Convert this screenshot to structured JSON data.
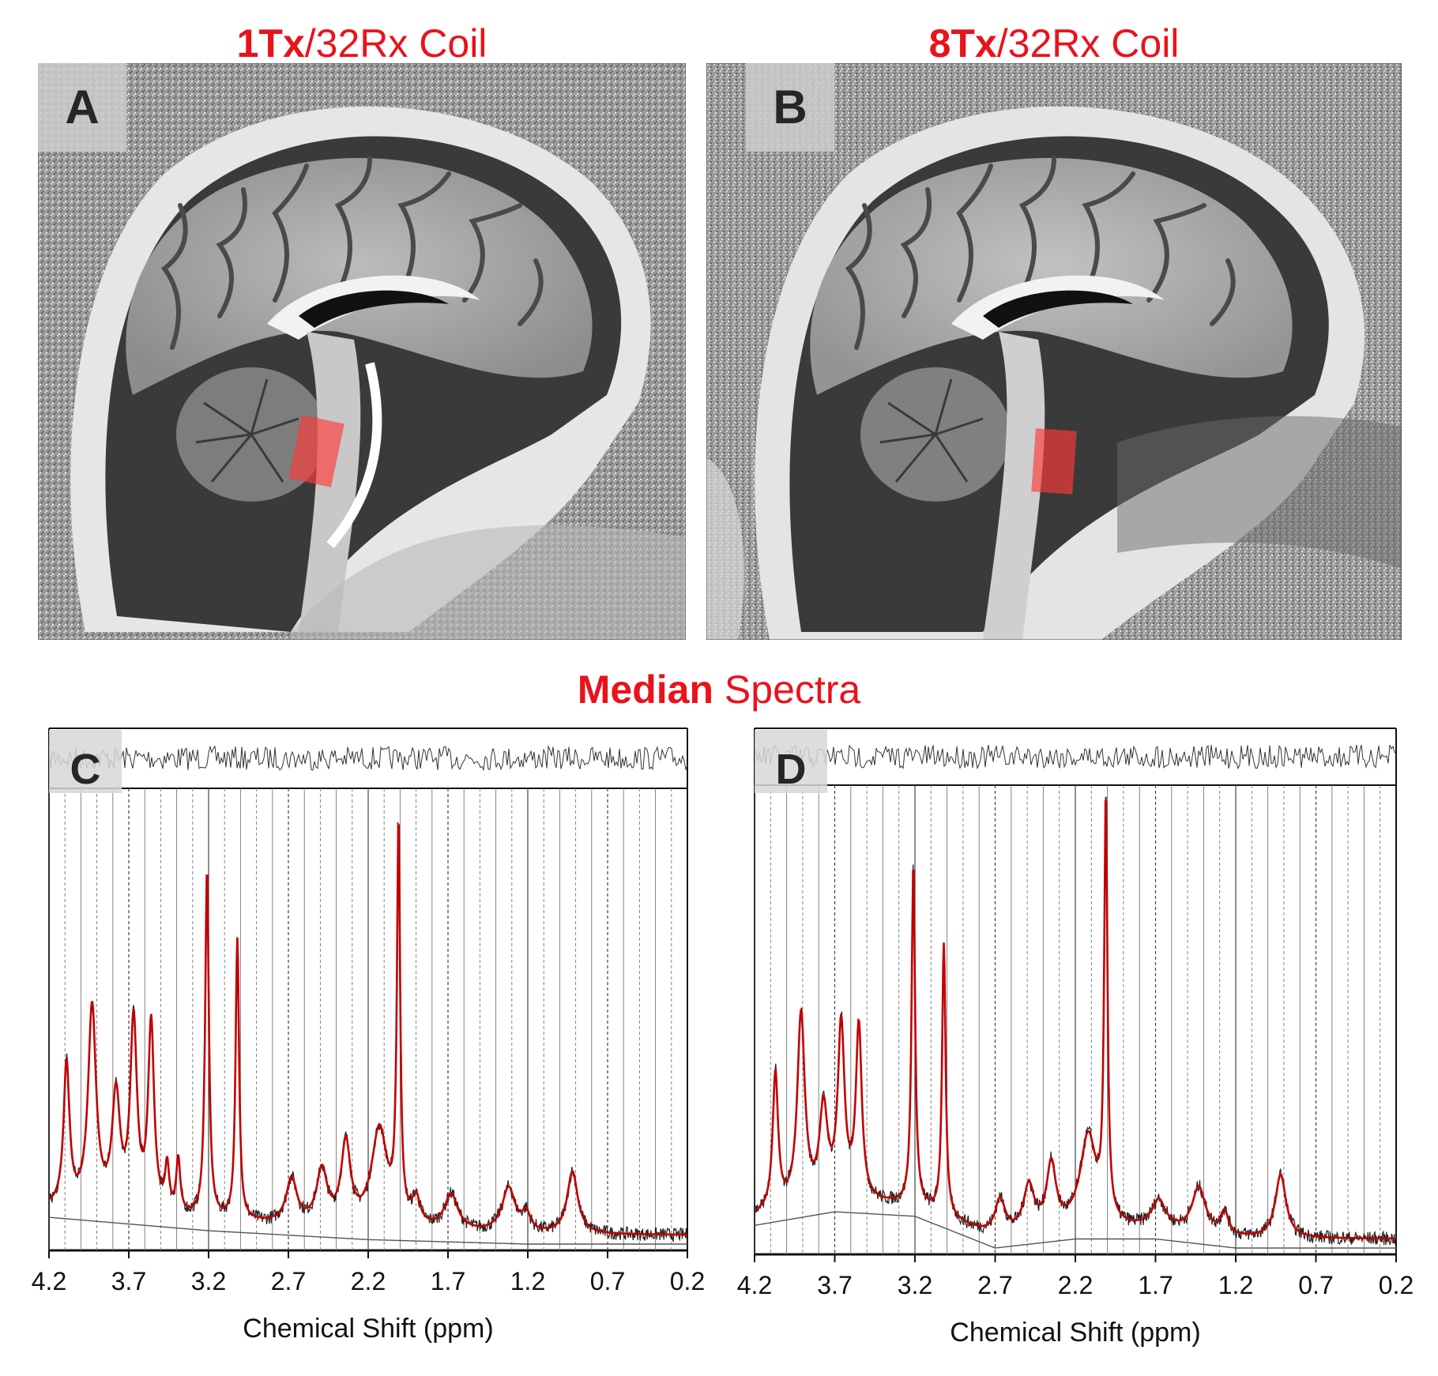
{
  "panels": {
    "A": {
      "letter": "A",
      "title_bold": "1Tx",
      "title_rest": "/32Rx Coil"
    },
    "B": {
      "letter": "B",
      "title_bold": "8Tx",
      "title_rest": "/32Rx Coil"
    }
  },
  "section_title": {
    "bold": "Median",
    "rest": " Spectra"
  },
  "colors": {
    "title_red": "#e8131b",
    "fit_red": "#c00000",
    "data_black": "#222222",
    "voi_red": "#ff3b3b"
  },
  "chart_data": [
    {
      "type": "line",
      "panel": "C",
      "xlabel": "Chemical Shift (ppm)",
      "xlim": [
        4.2,
        0.2
      ],
      "x_reversed": true,
      "ticks": [
        "4.2",
        "3.7",
        "3.2",
        "2.7",
        "2.2",
        "1.7",
        "1.2",
        "0.7",
        "0.2"
      ],
      "tick_values": [
        4.2,
        3.7,
        3.2,
        2.7,
        2.2,
        1.7,
        1.2,
        0.7,
        0.2
      ],
      "ylim": [
        0,
        1
      ],
      "series": [
        {
          "role": "fit",
          "color": "#c00000",
          "peaks": [
            [
              4.09,
              0.32,
              0.022
            ],
            [
              3.93,
              0.45,
              0.03
            ],
            [
              3.78,
              0.25,
              0.03
            ],
            [
              3.67,
              0.42,
              0.025
            ],
            [
              3.56,
              0.42,
              0.022
            ],
            [
              3.46,
              0.1,
              0.015
            ],
            [
              3.39,
              0.12,
              0.015
            ],
            [
              3.21,
              0.78,
              0.014
            ],
            [
              3.02,
              0.63,
              0.013
            ],
            [
              2.68,
              0.1,
              0.04
            ],
            [
              2.49,
              0.12,
              0.04
            ],
            [
              2.34,
              0.18,
              0.035
            ],
            [
              2.13,
              0.22,
              0.06
            ],
            [
              2.01,
              0.88,
              0.012
            ],
            [
              1.9,
              0.06,
              0.03
            ],
            [
              1.68,
              0.08,
              0.05
            ],
            [
              1.32,
              0.1,
              0.05
            ],
            [
              1.21,
              0.04,
              0.03
            ],
            [
              0.92,
              0.14,
              0.04
            ]
          ]
        },
        {
          "role": "baseline",
          "color": "#555555",
          "points": [
            [
              4.2,
              0.06
            ],
            [
              3.2,
              0.03
            ],
            [
              2.2,
              0.01
            ],
            [
              1.2,
              0.0
            ],
            [
              0.2,
              0.0
            ]
          ]
        }
      ]
    },
    {
      "type": "line",
      "panel": "D",
      "xlabel": "Chemical Shift (ppm)",
      "xlim": [
        4.2,
        0.2
      ],
      "x_reversed": true,
      "ticks": [
        "4.2",
        "3.7",
        "3.2",
        "2.7",
        "2.2",
        "1.7",
        "1.2",
        "0.7",
        "0.2"
      ],
      "tick_values": [
        4.2,
        3.7,
        3.2,
        2.7,
        2.2,
        1.7,
        1.2,
        0.7,
        0.2
      ],
      "ylim": [
        0,
        1
      ],
      "series": [
        {
          "role": "fit",
          "color": "#c00000",
          "peaks": [
            [
              4.07,
              0.3,
              0.02
            ],
            [
              3.91,
              0.42,
              0.028
            ],
            [
              3.77,
              0.2,
              0.03
            ],
            [
              3.66,
              0.38,
              0.025
            ],
            [
              3.55,
              0.38,
              0.022
            ],
            [
              3.21,
              0.75,
              0.013
            ],
            [
              3.02,
              0.6,
              0.013
            ],
            [
              2.67,
              0.08,
              0.04
            ],
            [
              2.49,
              0.1,
              0.04
            ],
            [
              2.35,
              0.14,
              0.035
            ],
            [
              2.12,
              0.2,
              0.06
            ],
            [
              2.01,
              0.92,
              0.012
            ],
            [
              1.68,
              0.06,
              0.05
            ],
            [
              1.43,
              0.1,
              0.05
            ],
            [
              1.27,
              0.05,
              0.03
            ],
            [
              0.92,
              0.14,
              0.04
            ]
          ]
        },
        {
          "role": "baseline",
          "color": "#555555",
          "points": [
            [
              4.2,
              0.05
            ],
            [
              3.7,
              0.08
            ],
            [
              3.2,
              0.07
            ],
            [
              2.7,
              0.0
            ],
            [
              2.2,
              0.02
            ],
            [
              1.7,
              0.02
            ],
            [
              1.2,
              0.0
            ],
            [
              0.2,
              0.0
            ]
          ]
        }
      ]
    }
  ]
}
